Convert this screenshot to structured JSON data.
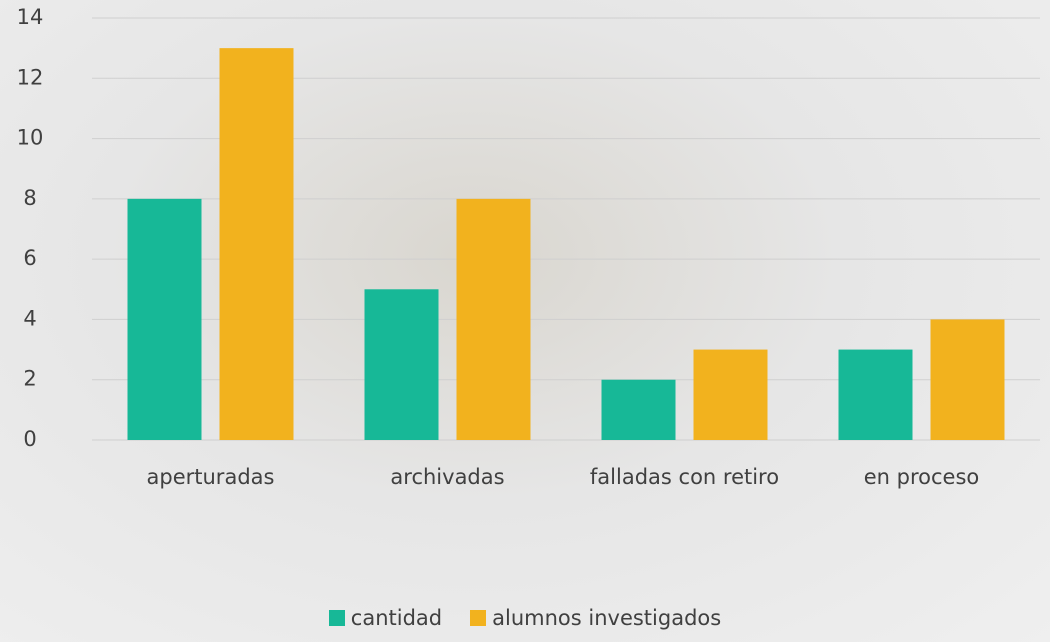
{
  "chart_data": {
    "type": "bar",
    "categories": [
      "aperturadas",
      "archivadas",
      "falladas con retiro",
      "en proceso"
    ],
    "series": [
      {
        "name": "cantidad",
        "color": "#17b897",
        "values": [
          8,
          5,
          2,
          3
        ]
      },
      {
        "name": "alumnos investigados",
        "color": "#f2b21e",
        "values": [
          13,
          8,
          3,
          4
        ]
      }
    ],
    "ylim": [
      0,
      14
    ],
    "yticks": [
      0,
      2,
      4,
      6,
      8,
      10,
      12,
      14
    ],
    "grid": true,
    "legend": "bottom"
  }
}
